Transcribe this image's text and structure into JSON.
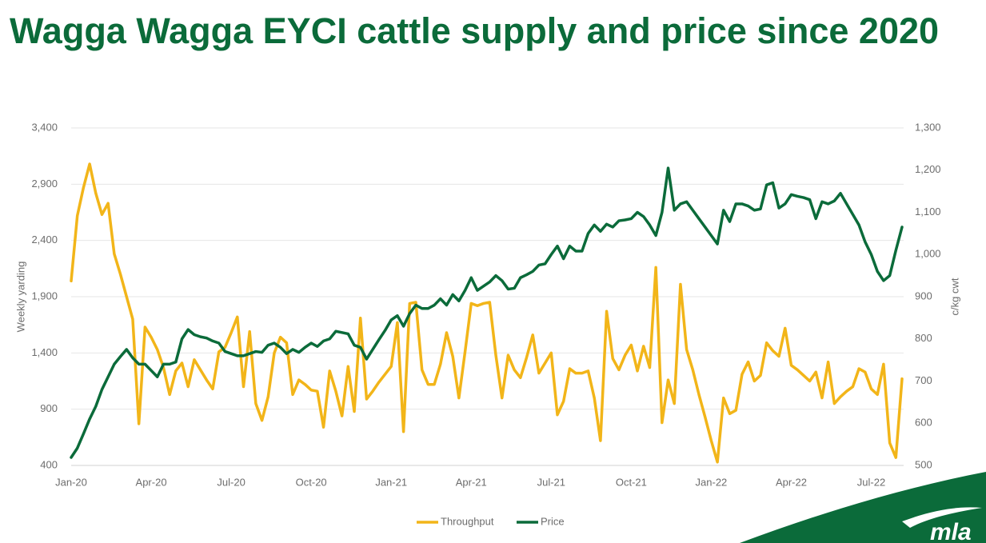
{
  "chart_data": {
    "type": "line",
    "title": "Wagga Wagga EYCI cattle supply and price since 2020",
    "ylabel": "Weekly yarding",
    "y2label": "c/kg cwt",
    "logo": "mla",
    "grid": true,
    "legend": "bottom",
    "categories": [
      "Jan-20",
      null,
      null,
      null,
      null,
      null,
      null,
      null,
      null,
      null,
      null,
      null,
      null,
      "Apr-20",
      null,
      null,
      null,
      null,
      null,
      null,
      null,
      null,
      null,
      null,
      null,
      null,
      "Jul-20",
      null,
      null,
      null,
      null,
      null,
      null,
      null,
      null,
      null,
      null,
      null,
      null,
      "Oct-20",
      null,
      null,
      null,
      null,
      null,
      null,
      null,
      null,
      null,
      null,
      null,
      null,
      "Jan-21",
      null,
      null,
      null,
      null,
      null,
      null,
      null,
      null,
      null,
      null,
      null,
      null,
      "Apr-21",
      null,
      null,
      null,
      null,
      null,
      null,
      null,
      null,
      null,
      null,
      null,
      null,
      "Jul-21",
      null,
      null,
      null,
      null,
      null,
      null,
      null,
      null,
      null,
      null,
      null,
      null,
      "Oct-21",
      null,
      null,
      null,
      null,
      null,
      null,
      null,
      null,
      null,
      null,
      null,
      null,
      "Jan-22",
      null,
      null,
      null,
      null,
      null,
      null,
      null,
      null,
      null,
      null,
      null,
      null,
      "Apr-22",
      null,
      null,
      null,
      null,
      null,
      null,
      null,
      null,
      null,
      null,
      null,
      null,
      "Jul-22",
      null,
      null,
      null,
      null,
      null
    ],
    "ylim": [
      400,
      3400
    ],
    "yticks": [
      400,
      900,
      {
        "value": 1400,
        "label": "1,400"
      },
      {
        "value": 1900,
        "label": "1,900"
      },
      {
        "value": 2400,
        "label": "2,400"
      },
      {
        "value": 2900,
        "label": "2,900"
      },
      {
        "value": 3400,
        "label": "3,400"
      }
    ],
    "y2lim": [
      500,
      1300
    ],
    "y2ticks": [
      500,
      600,
      700,
      800,
      900,
      {
        "value": 1000,
        "label": "1,000"
      },
      {
        "value": 1100,
        "label": "1,100"
      },
      {
        "value": 1200,
        "label": "1,200"
      },
      {
        "value": 1300,
        "label": "1,300"
      }
    ],
    "series": [
      {
        "name": "Throughput",
        "color": "#f2b519",
        "values": [
          2040,
          2620,
          2870,
          3080,
          2820,
          2630,
          2730,
          2280,
          2100,
          1900,
          1700,
          770,
          1630,
          1540,
          1430,
          1270,
          1030,
          1240,
          1310,
          1100,
          1340,
          1250,
          1160,
          1080,
          1410,
          1450,
          1580,
          1720,
          1100,
          1590,
          950,
          800,
          1010,
          1400,
          1540,
          1490,
          1030,
          1160,
          1120,
          1070,
          1060,
          740,
          1240,
          1060,
          840,
          1280,
          880,
          1710,
          990,
          1060,
          1140,
          1210,
          1280,
          1670,
          700,
          1840,
          1850,
          1250,
          1120,
          1120,
          1300,
          1580,
          1370,
          1000,
          1410,
          1840,
          1820,
          1840,
          1850,
          1380,
          1000,
          1380,
          1250,
          1180,
          1360,
          1560,
          1220,
          1310,
          1400,
          850,
          970,
          1260,
          1220,
          1220,
          1240,
          1000,
          620,
          1770,
          1350,
          1250,
          1380,
          1470,
          1240,
          1460,
          1270,
          2160,
          780,
          1160,
          950,
          2010,
          1430,
          1250,
          1030,
          830,
          620,
          430,
          1000,
          860,
          890,
          1210,
          1320,
          1150,
          1200,
          1490,
          1420,
          1370,
          1620,
          1290,
          1250,
          1200,
          1150,
          1230,
          1000,
          1320,
          950,
          1010,
          1060,
          1100,
          1260,
          1230,
          1080,
          1030,
          1300,
          600,
          470,
          1170
        ]
      },
      {
        "name": "Price",
        "color": "#0b6b3a",
        "axis": "y2",
        "values": [
          519,
          541,
          575,
          610,
          640,
          680,
          710,
          740,
          758,
          775,
          755,
          740,
          740,
          725,
          710,
          740,
          740,
          745,
          800,
          822,
          810,
          805,
          802,
          795,
          790,
          770,
          765,
          760,
          760,
          765,
          770,
          768,
          785,
          790,
          780,
          765,
          775,
          768,
          780,
          790,
          782,
          795,
          800,
          818,
          815,
          812,
          785,
          780,
          752,
          775,
          798,
          820,
          845,
          855,
          830,
          860,
          880,
          872,
          872,
          880,
          895,
          880,
          905,
          890,
          915,
          945,
          915,
          925,
          935,
          950,
          938,
          918,
          920,
          945,
          952,
          960,
          975,
          978,
          1000,
          1020,
          990,
          1020,
          1008,
          1008,
          1050,
          1070,
          1055,
          1072,
          1065,
          1080,
          1082,
          1085,
          1100,
          1090,
          1070,
          1045,
          1100,
          1205,
          1105,
          1120,
          1125,
          1105,
          1085,
          1065,
          1045,
          1025,
          1105,
          1078,
          1120,
          1120,
          1115,
          1105,
          1108,
          1165,
          1170,
          1110,
          1120,
          1142,
          1138,
          1135,
          1130,
          1085,
          1125,
          1120,
          1127,
          1145,
          1120,
          1095,
          1070,
          1030,
          1000,
          960,
          938,
          950,
          1010,
          1065
        ]
      }
    ]
  }
}
